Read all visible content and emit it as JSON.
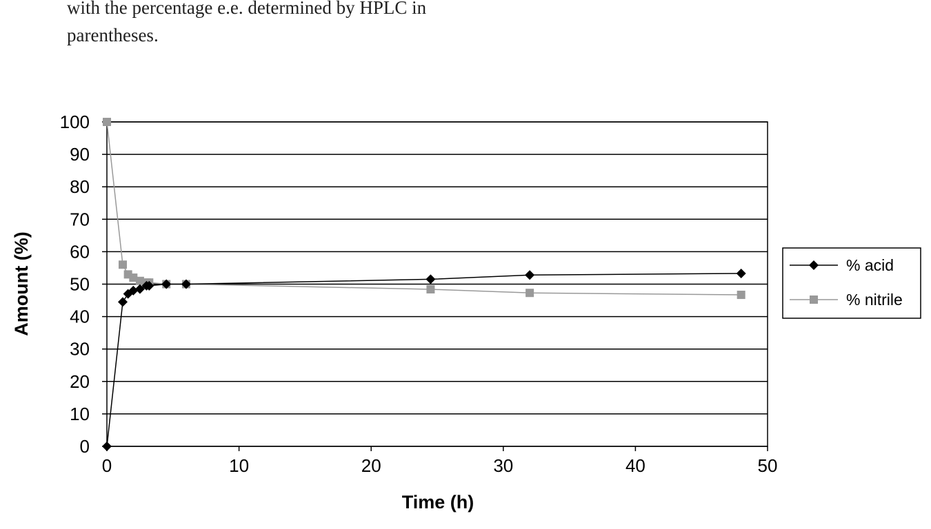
{
  "text": {
    "lines": [
      "with the percentage e.e. determined by HPLC in",
      "parentheses."
    ]
  },
  "chart_data": {
    "type": "line",
    "xlabel": "Time (h)",
    "ylabel": "Amount (%)",
    "x": [
      0,
      1.2,
      1.6,
      2,
      2.5,
      3,
      3.2,
      4.5,
      6,
      24.5,
      32,
      48
    ],
    "series": [
      {
        "name": "% acid",
        "color": "#000000",
        "marker": "diamond",
        "values": [
          0,
          44.5,
          47,
          48,
          48.5,
          49.5,
          49.5,
          50,
          50,
          51.5,
          52.8,
          53.3
        ]
      },
      {
        "name": "% nitrile",
        "color": "#999999",
        "marker": "square",
        "values": [
          100,
          56,
          53,
          52,
          51,
          50.5,
          50.5,
          50,
          50,
          48.4,
          47.3,
          46.7
        ]
      }
    ],
    "xlim": [
      0,
      50
    ],
    "xticks": [
      0,
      10,
      20,
      30,
      40,
      50
    ],
    "ylim": [
      0,
      100
    ],
    "yticks": [
      0,
      10,
      20,
      30,
      40,
      50,
      60,
      70,
      80,
      90,
      100
    ],
    "grid": true,
    "legend": "right"
  }
}
